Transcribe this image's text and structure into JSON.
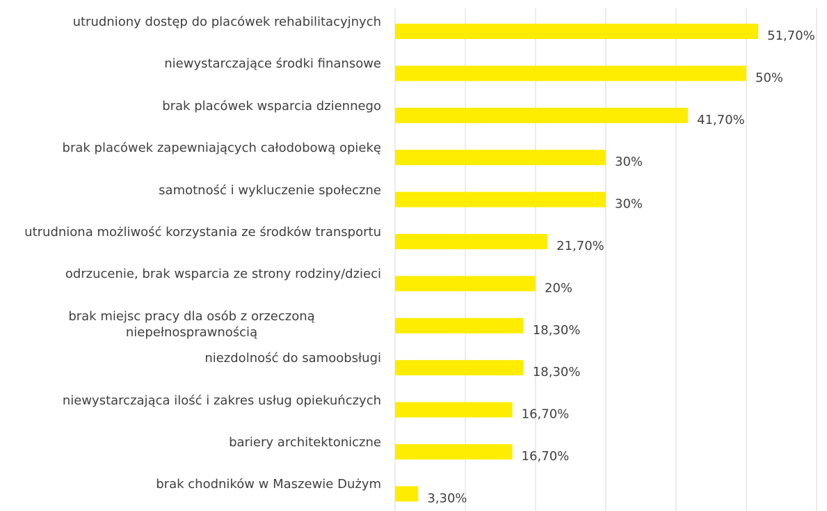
{
  "chart_data": {
    "type": "bar",
    "orientation": "horizontal",
    "categories": [
      "utrudniony dostęp do placówek rehabilitacyjnych",
      "niewystarczające środki finansowe",
      "brak placówek wsparcia dziennego",
      "brak placówek zapewniających całodobową opiekę",
      "samotność i wykluczenie społeczne",
      "utrudniona możliwość korzystania ze środków transportu",
      "odrzucenie, brak wsparcia ze strony rodziny/dzieci",
      "brak miejsc pracy dla osób z orzeczoną niepełnosprawnością",
      "niezdolność do samoobsługi",
      "niewystarczająca ilość i zakres usług opiekuńczych",
      "bariery architektoniczne",
      "brak chodników w Maszewie Dużym"
    ],
    "values": [
      51.7,
      50,
      41.7,
      30,
      30,
      21.7,
      20,
      18.3,
      18.3,
      16.7,
      16.7,
      3.3
    ],
    "value_labels": [
      "51,70%",
      "50%",
      "41,70%",
      "30%",
      "30%",
      "21,70%",
      "20%",
      "18,30%",
      "18,30%",
      "16,70%",
      "16,70%",
      "3,30%"
    ],
    "color": "#ffed00",
    "xlim": [
      0,
      60
    ],
    "xticks": [
      0,
      10,
      20,
      30,
      40,
      50,
      60
    ],
    "grid": true
  }
}
